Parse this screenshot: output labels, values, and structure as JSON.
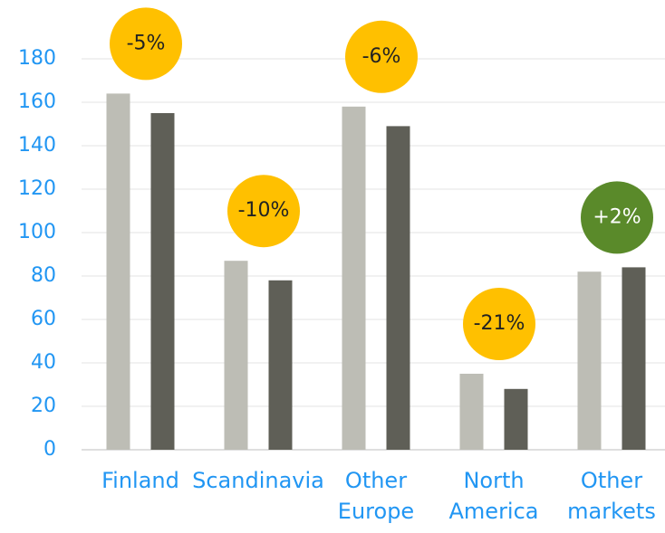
{
  "chart_data": {
    "type": "bar",
    "categories": [
      "Finland",
      "Scandinavia",
      "Other Europe",
      "North America",
      "Other markets"
    ],
    "series": [
      {
        "color": "#bdbdb5",
        "values": [
          164,
          87,
          158,
          35,
          82
        ]
      },
      {
        "color": "#5f5f57",
        "values": [
          155,
          78,
          149,
          28,
          84
        ]
      }
    ],
    "annotations": [
      {
        "text": "-5%",
        "color": "#ffc000"
      },
      {
        "text": "-10%",
        "color": "#ffc000"
      },
      {
        "text": "-6%",
        "color": "#ffc000"
      },
      {
        "text": "-21%",
        "color": "#ffc000"
      },
      {
        "text": "+2%",
        "color": "#5a8a2a"
      }
    ],
    "ylim": [
      0,
      180
    ],
    "yticks": [
      0,
      20,
      40,
      60,
      80,
      100,
      120,
      140,
      160,
      180
    ],
    "grid": true
  }
}
